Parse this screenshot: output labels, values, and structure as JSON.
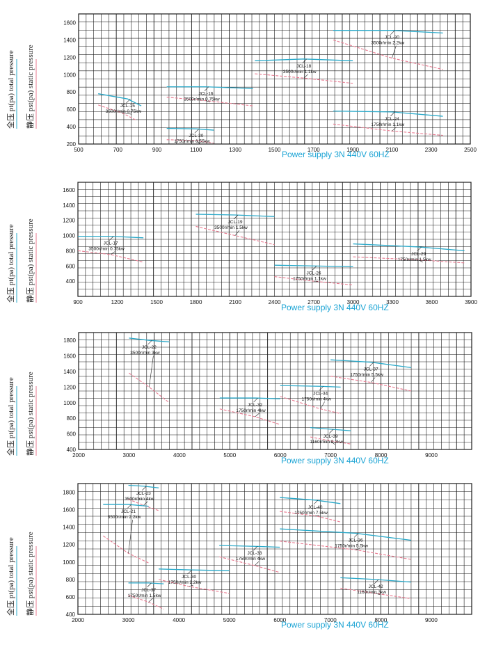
{
  "chart_data": [
    {
      "type": "line",
      "total_label": "全压 pt(pa) total pressure",
      "static_label": "静压 pst(pa) static pressure",
      "xlabel": "Power supply   3N 440V  60HZ",
      "xlim": [
        500,
        2500
      ],
      "ylim": [
        200,
        1700
      ],
      "x_ticks": [
        500,
        700,
        900,
        1100,
        1300,
        1500,
        1700,
        1900,
        2100,
        2300,
        2500
      ],
      "y_ticks": [
        200,
        400,
        600,
        800,
        1000,
        1200,
        1400,
        1600
      ],
      "series": [
        {
          "name": "JCL-15",
          "label": "3500r/min 0.75kw",
          "total": [
            [
              600,
              780
            ],
            [
              750,
              720
            ],
            [
              820,
              640
            ]
          ],
          "static": [
            [
              600,
              650
            ],
            [
              720,
              560
            ],
            [
              790,
              480
            ]
          ]
        },
        {
          "name": "JCL-20",
          "label": "1750r/min 0.55kw",
          "total": [
            [
              950,
              380
            ],
            [
              1100,
              375
            ],
            [
              1190,
              360
            ]
          ],
          "static": [
            [
              950,
              250
            ],
            [
              1100,
              240
            ],
            [
              1190,
              210
            ]
          ]
        },
        {
          "name": "JCL-16",
          "label": "3500r/min 0.75kw",
          "total": [
            [
              950,
              860
            ],
            [
              1150,
              860
            ],
            [
              1390,
              840
            ]
          ],
          "static": [
            [
              950,
              740
            ],
            [
              1150,
              700
            ],
            [
              1390,
              640
            ]
          ]
        },
        {
          "name": "JCL-18",
          "label": "3500r/min 1.1kw",
          "total": [
            [
              1400,
              1160
            ],
            [
              1650,
              1180
            ],
            [
              1900,
              1160
            ]
          ],
          "static": [
            [
              1400,
              1010
            ],
            [
              1650,
              960
            ],
            [
              1900,
              900
            ]
          ]
        },
        {
          "name": "JCL-24",
          "label": "1750r/min 1.1kw",
          "total": [
            [
              1800,
              580
            ],
            [
              2100,
              570
            ],
            [
              2360,
              520
            ]
          ],
          "static": [
            [
              1800,
              430
            ],
            [
              2100,
              350
            ],
            [
              2360,
              300
            ]
          ]
        },
        {
          "name": "JCL-30",
          "label": "3500r/min 2.2kw",
          "total": [
            [
              1800,
              1510
            ],
            [
              2100,
              1510
            ],
            [
              2360,
              1480
            ]
          ],
          "static": [
            [
              1800,
              1400
            ],
            [
              2100,
              1190
            ],
            [
              2360,
              1060
            ]
          ]
        }
      ]
    },
    {
      "type": "line",
      "total_label": "全压 pt(pa) total pressure",
      "static_label": "静压 pst(pa) static pressure",
      "xlabel": "Power supply   3N 440V  60HZ",
      "xlim": [
        900,
        3900
      ],
      "ylim": [
        200,
        1700
      ],
      "x_ticks": [
        900,
        1200,
        1500,
        1800,
        2100,
        2400,
        2700,
        3000,
        3300,
        3600,
        3900
      ],
      "y_ticks": [
        400,
        600,
        800,
        1000,
        1200,
        1400,
        1600
      ],
      "series": [
        {
          "name": "JCL-17",
          "label": "3500r/min 0.75kw",
          "total": [
            [
              900,
              990
            ],
            [
              1150,
              990
            ],
            [
              1400,
              970
            ]
          ],
          "static": [
            [
              900,
              800
            ],
            [
              1150,
              750
            ],
            [
              1400,
              650
            ]
          ]
        },
        {
          "name": "JCL-19",
          "label": "3500r/min 1.5kw",
          "total": [
            [
              1800,
              1280
            ],
            [
              2100,
              1270
            ],
            [
              2400,
              1250
            ]
          ],
          "static": [
            [
              1800,
              1120
            ],
            [
              2100,
              1000
            ],
            [
              2400,
              880
            ]
          ]
        },
        {
          "name": "JCL-26",
          "label": "1750r/min 1.1kw",
          "total": [
            [
              2400,
              610
            ],
            [
              2700,
              600
            ],
            [
              3000,
              590
            ]
          ],
          "static": [
            [
              2400,
              460
            ],
            [
              2700,
              400
            ],
            [
              3000,
              350
            ]
          ]
        },
        {
          "name": "JCL-29",
          "label": "1750r/min 1.5kw",
          "total": [
            [
              3000,
              890
            ],
            [
              3500,
              850
            ],
            [
              3850,
              800
            ]
          ],
          "static": [
            [
              3000,
              720
            ],
            [
              3500,
              680
            ],
            [
              3850,
              640
            ]
          ]
        }
      ]
    },
    {
      "type": "line",
      "total_label": "全压 pt(pa) total pressure",
      "static_label": "静压 pst(pa) static pressure",
      "xlabel": "Power supply   3N 440V  60HZ",
      "xlim": [
        2000,
        9800
      ],
      "ylim": [
        400,
        1900
      ],
      "x_ticks": [
        2000,
        3000,
        4000,
        5000,
        6000,
        7000,
        8000,
        9000
      ],
      "y_ticks": [
        400,
        600,
        800,
        1000,
        1200,
        1400,
        1600,
        1800
      ],
      "series": [
        {
          "name": "JCL-22",
          "label": "3500r/min 3kw",
          "total": [
            [
              3000,
              1830
            ],
            [
              3400,
              1800
            ],
            [
              3800,
              1780
            ]
          ],
          "static": [
            [
              3000,
              1380
            ],
            [
              3400,
              1200
            ],
            [
              3800,
              1000
            ]
          ]
        },
        {
          "name": "JCL-32",
          "label": "1750r/min 4kw",
          "total": [
            [
              4800,
              1060
            ],
            [
              5500,
              1060
            ],
            [
              6000,
              1050
            ]
          ],
          "static": [
            [
              4800,
              920
            ],
            [
              5500,
              820
            ],
            [
              6000,
              720
            ]
          ]
        },
        {
          "name": "JCL-34",
          "label": "1750r/min 4kw",
          "total": [
            [
              6000,
              1220
            ],
            [
              6800,
              1210
            ],
            [
              7200,
              1200
            ]
          ],
          "static": [
            [
              6000,
              1080
            ],
            [
              6800,
              920
            ],
            [
              7200,
              860
            ]
          ]
        },
        {
          "name": "JCL-37",
          "label": "1750r/min 5.5kw",
          "total": [
            [
              7000,
              1550
            ],
            [
              7800,
              1520
            ],
            [
              8600,
              1450
            ]
          ],
          "static": [
            [
              7000,
              1340
            ],
            [
              7800,
              1260
            ],
            [
              8600,
              1150
            ]
          ]
        },
        {
          "name": "JCL-39",
          "label": "1160r/min 2.2kw",
          "total": [
            [
              6600,
              680
            ],
            [
              7000,
              660
            ],
            [
              7400,
              640
            ]
          ],
          "static": [
            [
              6600,
              560
            ],
            [
              7000,
              510
            ],
            [
              7400,
              470
            ]
          ]
        }
      ]
    },
    {
      "type": "line",
      "total_label": "全压 pt(pa) total pressure",
      "static_label": "静压 pst(pa) static pressure",
      "xlabel": "Power supply   3N 440V  60HZ",
      "xlim": [
        2000,
        9800
      ],
      "ylim": [
        400,
        1900
      ],
      "x_ticks": [
        2000,
        3000,
        4000,
        5000,
        6000,
        7000,
        8000,
        9000
      ],
      "y_ticks": [
        400,
        600,
        800,
        1000,
        1200,
        1400,
        1600,
        1800
      ],
      "series": [
        {
          "name": "JCL-23",
          "label": "3500r/min 4kw",
          "total": [
            [
              3000,
              1880
            ],
            [
              3300,
              1870
            ],
            [
              3600,
              1850
            ]
          ],
          "static": [
            [
              3000,
              1720
            ],
            [
              3300,
              1650
            ],
            [
              3600,
              1590
            ]
          ]
        },
        {
          "name": "JCL-21",
          "label": "3500r/min 2.2kw",
          "total": [
            [
              2500,
              1660
            ],
            [
              3000,
              1660
            ],
            [
              3400,
              1640
            ]
          ],
          "static": [
            [
              2500,
              1300
            ],
            [
              3000,
              1100
            ],
            [
              3400,
              990
            ]
          ]
        },
        {
          "name": "JCL-40",
          "label": "1750r/min 7.5kw",
          "total": [
            [
              6000,
              1740
            ],
            [
              6700,
              1710
            ],
            [
              7200,
              1670
            ]
          ],
          "static": [
            [
              6000,
              1580
            ],
            [
              6700,
              1530
            ],
            [
              7200,
              1460
            ]
          ]
        },
        {
          "name": "JCL-36",
          "label": "1750r/min 5.5kw",
          "total": [
            [
              6000,
              1380
            ],
            [
              7500,
              1330
            ],
            [
              8600,
              1250
            ]
          ],
          "static": [
            [
              6000,
              1240
            ],
            [
              7500,
              1140
            ],
            [
              8600,
              1030
            ]
          ]
        },
        {
          "name": "JCL-33",
          "label": "1750r/min 4kw",
          "total": [
            [
              4800,
              1190
            ],
            [
              5500,
              1180
            ],
            [
              6000,
              1170
            ]
          ],
          "static": [
            [
              4800,
              1060
            ],
            [
              5500,
              960
            ],
            [
              6000,
              880
            ]
          ]
        },
        {
          "name": "JCL-30",
          "label": "1750r/min 2.2kw",
          "total": [
            [
              3600,
              920
            ],
            [
              4200,
              910
            ],
            [
              5000,
              900
            ]
          ],
          "static": [
            [
              3600,
              800
            ],
            [
              4200,
              720
            ],
            [
              5000,
              640
            ]
          ]
        },
        {
          "name": "JCL-37",
          "label": "1750r/min 1.5kw",
          "total": [
            [
              3000,
              760
            ],
            [
              3400,
              760
            ],
            [
              3700,
              750
            ]
          ],
          "static": [
            [
              3000,
              620
            ],
            [
              3400,
              540
            ],
            [
              3700,
              460
            ]
          ]
        },
        {
          "name": "JCL-42",
          "label": "1160r/min 3kw",
          "total": [
            [
              7200,
              820
            ],
            [
              7900,
              800
            ],
            [
              8600,
              770
            ]
          ],
          "static": [
            [
              7200,
              700
            ],
            [
              7900,
              640
            ],
            [
              8600,
              580
            ]
          ]
        }
      ]
    }
  ],
  "colors": {
    "total": "#2aa9c9",
    "static": "#e8798f",
    "grid": "#1a1a1a",
    "supply": "#1aa3d4"
  }
}
